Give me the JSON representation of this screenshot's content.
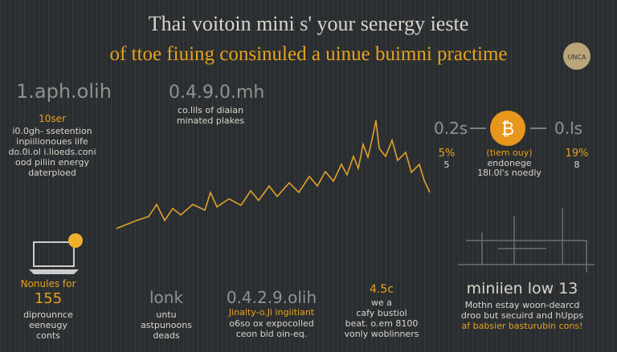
{
  "header": {
    "title": "Thai voitoin mini s' your senergy ieste",
    "subtitle": "of ttoe fiuing consinuled a uinue buimni practime",
    "badge": "UNCA"
  },
  "left_stat": {
    "value": "1.aph.olih",
    "highlight": "10ser",
    "lines": [
      "i0.0gh- ssetention",
      "inpiilionoues life",
      "do.0i.ol i.lioeds.coni",
      "ood piliin energy",
      "daterploed"
    ]
  },
  "mid_stat": {
    "value": "0.4.9.0.mh",
    "lines": [
      "co.lils of diaian",
      "minated plakes"
    ]
  },
  "bitcoin": {
    "left_value": "0.2s",
    "right_value": "0.ls",
    "left_pct": "5%",
    "left_sub": "5",
    "right_pct": "19%",
    "right_sub": "8",
    "highlight": "(tiem ouy)",
    "lines": [
      "endonege",
      "18l.0l's noedly"
    ]
  },
  "laptop": {
    "title": "Nonules for",
    "value": "155",
    "lines": [
      "diprounnce",
      "eeneugy",
      "conts"
    ]
  },
  "bottom_1": {
    "value": "lonk",
    "lines": [
      "untu",
      "astpunoons",
      "deads"
    ]
  },
  "bottom_2": {
    "value": "0.4.2.9.olih",
    "highlight": "Jinalty-o.Ji ingiitiant",
    "lines": [
      "o6so ox expocolled",
      "ceon bid oin-eq."
    ]
  },
  "bottom_3": {
    "value": "4.5c",
    "lines": [
      "we a",
      "cafy bustiol",
      "beat. o.em 8100",
      "vonly woblinners"
    ]
  },
  "bottom_right": {
    "title": "miniien low 13",
    "lines": [
      "Mothn estay woon-dearcd",
      "droo but secuird and hUpps"
    ],
    "highlight": "af babsier basturubin cons!"
  }
}
